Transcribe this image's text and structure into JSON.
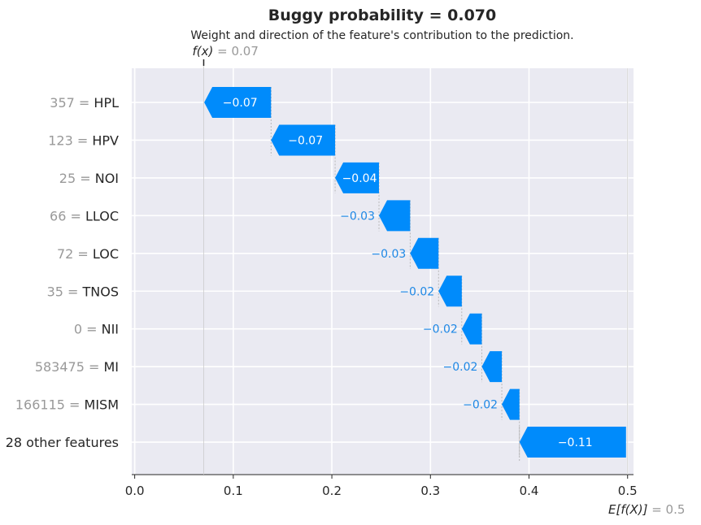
{
  "chart_data": {
    "type": "waterfall",
    "title": "Buggy probability = 0.070",
    "subtitle": "Weight and direction of the feature's contribution to the prediction.",
    "fx": {
      "label": "f(x)",
      "value_text": "= 0.07",
      "value": 0.07
    },
    "base": {
      "label": "E[f(X)]",
      "value_text": "= 0.5",
      "value": 0.5
    },
    "xlim": [
      -0.003,
      0.506
    ],
    "xticks": [
      0.0,
      0.1,
      0.2,
      0.3,
      0.4,
      0.5
    ],
    "xtick_labels": [
      "0.0",
      "0.1",
      "0.2",
      "0.3",
      "0.4",
      "0.5"
    ],
    "grid": true,
    "colors": {
      "negative": "#008bfb",
      "negative_text": "#1e88e5",
      "background": "#eaeaf2",
      "grid": "#ffffff"
    },
    "features": [
      {
        "value_text": "357",
        "name": "HPL",
        "start": 0.1383,
        "end": 0.0705,
        "label": "−0.07"
      },
      {
        "value_text": "123",
        "name": "HPV",
        "start": 0.2033,
        "end": 0.1383,
        "label": "−0.07"
      },
      {
        "value_text": "25",
        "name": "NOI",
        "start": 0.2478,
        "end": 0.2033,
        "label": "−0.04"
      },
      {
        "value_text": "66",
        "name": "LLOC",
        "start": 0.2794,
        "end": 0.2478,
        "label": "−0.03"
      },
      {
        "value_text": "72",
        "name": "LOC",
        "start": 0.3082,
        "end": 0.2794,
        "label": "−0.03"
      },
      {
        "value_text": "35",
        "name": "TNOS",
        "start": 0.3318,
        "end": 0.3082,
        "label": "−0.02"
      },
      {
        "value_text": "0",
        "name": "NII",
        "start": 0.3521,
        "end": 0.3318,
        "label": "−0.02"
      },
      {
        "value_text": "583475",
        "name": "MI",
        "start": 0.3724,
        "end": 0.3521,
        "label": "−0.02"
      },
      {
        "value_text": "166115",
        "name": "MISM",
        "start": 0.3903,
        "end": 0.3724,
        "label": "−0.02"
      },
      {
        "value_text": "",
        "name": "28 other features",
        "start": 0.4984,
        "end": 0.3903,
        "label": "−0.11"
      }
    ]
  }
}
